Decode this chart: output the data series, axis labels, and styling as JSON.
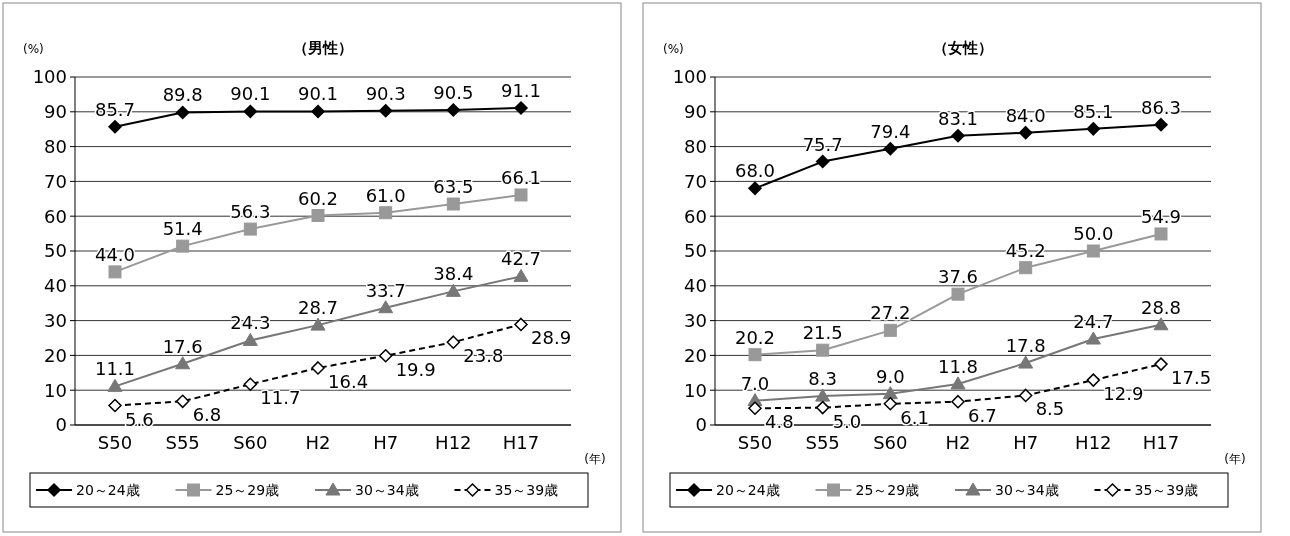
{
  "chart_data": [
    {
      "type": "line",
      "title": "（男性）",
      "ylabel": "(%)",
      "xlabel": "(年)",
      "categories": [
        "S50",
        "S55",
        "S60",
        "H2",
        "H7",
        "H12",
        "H17"
      ],
      "ylim": [
        0,
        100
      ],
      "yticks": [
        0,
        10,
        20,
        30,
        40,
        50,
        60,
        70,
        80,
        90,
        100
      ],
      "grid": "y",
      "legend": "bottom",
      "series": [
        {
          "name": "20～24歳",
          "color": "#000000",
          "marker": "diamond",
          "line_style": "solid",
          "values": [
            85.7,
            89.8,
            90.1,
            90.1,
            90.3,
            90.5,
            91.1
          ],
          "value_labels": [
            "85.7",
            "89.8",
            "90.1",
            "90.1",
            "90.3",
            "90.5",
            "91.1"
          ]
        },
        {
          "name": "25～29歳",
          "color": "#999999",
          "marker": "square",
          "line_style": "solid",
          "values": [
            44.0,
            51.4,
            56.3,
            60.2,
            61.0,
            63.5,
            66.1
          ],
          "value_labels": [
            "44.0",
            "51.4",
            "56.3",
            "60.2",
            "61.0",
            "63.5",
            "66.1"
          ]
        },
        {
          "name": "30～34歳",
          "color": "#777777",
          "marker": "triangle",
          "line_style": "solid",
          "values": [
            11.1,
            17.6,
            24.3,
            28.7,
            33.7,
            38.4,
            42.7
          ],
          "value_labels": [
            "11.1",
            "17.6",
            "24.3",
            "28.7",
            "33.7",
            "38.4",
            "42.7"
          ]
        },
        {
          "name": "35～39歳",
          "color": "#000000",
          "marker": "diamond",
          "line_style": "dashed",
          "values": [
            5.6,
            6.8,
            11.7,
            16.4,
            19.9,
            23.8,
            28.9
          ],
          "value_labels": [
            "5.6",
            "6.8",
            "11.7",
            "16.4",
            "19.9",
            "23.8",
            "28.9"
          ]
        }
      ]
    },
    {
      "type": "line",
      "title": "（女性）",
      "ylabel": "(%)",
      "xlabel": "(年)",
      "categories": [
        "S50",
        "S55",
        "S60",
        "H2",
        "H7",
        "H12",
        "H17"
      ],
      "ylim": [
        0,
        100
      ],
      "yticks": [
        0,
        10,
        20,
        30,
        40,
        50,
        60,
        70,
        80,
        90,
        100
      ],
      "grid": "y",
      "legend": "bottom",
      "series": [
        {
          "name": "20～24歳",
          "color": "#000000",
          "marker": "diamond",
          "line_style": "solid",
          "values": [
            68.0,
            75.7,
            79.4,
            83.1,
            84.0,
            85.1,
            86.3
          ],
          "value_labels": [
            "68.0",
            "75.7",
            "79.4",
            "83.1",
            "84.0",
            "85.1",
            "86.3"
          ]
        },
        {
          "name": "25～29歳",
          "color": "#999999",
          "marker": "square",
          "line_style": "solid",
          "values": [
            20.2,
            21.5,
            27.2,
            37.6,
            45.2,
            50.0,
            54.9
          ],
          "value_labels": [
            "20.2",
            "21.5",
            "27.2",
            "37.6",
            "45.2",
            "50.0",
            "54.9"
          ]
        },
        {
          "name": "30～34歳",
          "color": "#777777",
          "marker": "triangle",
          "line_style": "solid",
          "values": [
            7.0,
            8.3,
            9.0,
            11.8,
            17.8,
            24.7,
            28.8
          ],
          "value_labels": [
            "7.0",
            "8.3",
            "9.0",
            "11.8",
            "17.8",
            "24.7",
            "28.8"
          ]
        },
        {
          "name": "35～39歳",
          "color": "#000000",
          "marker": "diamond",
          "line_style": "dashed",
          "values": [
            4.8,
            5.0,
            6.1,
            6.7,
            8.5,
            12.9,
            17.5
          ],
          "value_labels": [
            "4.8",
            "5.0",
            "6.1",
            "6.7",
            "8.5",
            "12.9",
            "17.5"
          ]
        }
      ]
    }
  ]
}
